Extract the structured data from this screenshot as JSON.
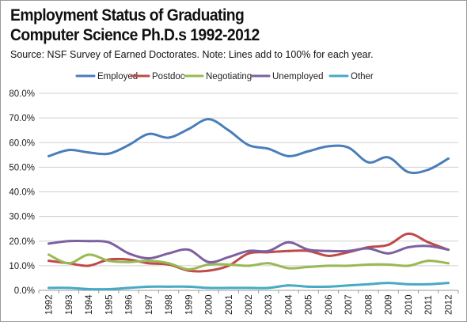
{
  "title_lines": [
    "Employment Status of Graduating",
    "Computer Science Ph.D.s 1992-2012"
  ],
  "source": "Source: NSF Survey of Earned Doctorates. Note: Lines add to 100% for each year.",
  "chart_data": {
    "type": "line",
    "title": "Employment Status of Graduating Computer Science Ph.D.s 1992-2012",
    "xlabel": "",
    "ylabel": "",
    "categories": [
      "1992",
      "1993",
      "1994",
      "1995",
      "1996",
      "1997",
      "1998",
      "1999",
      "2000",
      "2001",
      "2002",
      "2003",
      "2004",
      "2005",
      "2006",
      "2007",
      "2008",
      "2009",
      "2010",
      "2011",
      "2012"
    ],
    "ylim": [
      0,
      80
    ],
    "yticks": [
      "0.0%",
      "10.0%",
      "20.0%",
      "30.0%",
      "40.0%",
      "50.0%",
      "60.0%",
      "70.0%",
      "80.0%"
    ],
    "ytick_values": [
      0,
      10,
      20,
      30,
      40,
      50,
      60,
      70,
      80
    ],
    "grid": true,
    "legend_position": "top",
    "series": [
      {
        "name": "Employed",
        "color": "#4a7ebb",
        "values": [
          54.5,
          57,
          56,
          55.5,
          59,
          63.5,
          62,
          65.5,
          69.5,
          65,
          59,
          57.5,
          54.5,
          56.5,
          58.5,
          58,
          52,
          54,
          48,
          49,
          53.5
        ]
      },
      {
        "name": "Postdoc",
        "color": "#be4b48",
        "values": [
          12,
          11,
          10,
          12.5,
          12.5,
          11,
          10.5,
          8,
          8,
          10,
          15,
          15.5,
          16,
          16,
          14,
          15.5,
          17.5,
          18.5,
          23,
          19.5,
          16.5
        ]
      },
      {
        "name": "Negotiating",
        "color": "#98b954",
        "values": [
          14.5,
          11,
          14.5,
          12,
          11.5,
          12,
          11,
          8.5,
          10.5,
          10.5,
          10,
          11,
          9,
          9.5,
          10,
          10,
          10.5,
          10.5,
          10,
          12,
          11
        ]
      },
      {
        "name": "Unemployed",
        "color": "#7d60a0",
        "values": [
          19,
          20,
          20,
          19.5,
          15,
          13,
          15,
          16.5,
          11.5,
          13.5,
          16,
          16,
          19.5,
          16.5,
          16,
          16,
          17,
          15,
          17.5,
          18,
          16.5
        ]
      },
      {
        "name": "Other",
        "color": "#46aac5",
        "values": [
          1,
          1,
          0.5,
          0.5,
          1,
          1.5,
          1.5,
          1.5,
          1,
          1,
          1,
          1,
          2,
          1.5,
          1.5,
          2,
          2.5,
          3,
          2.5,
          2.5,
          3
        ]
      }
    ]
  }
}
